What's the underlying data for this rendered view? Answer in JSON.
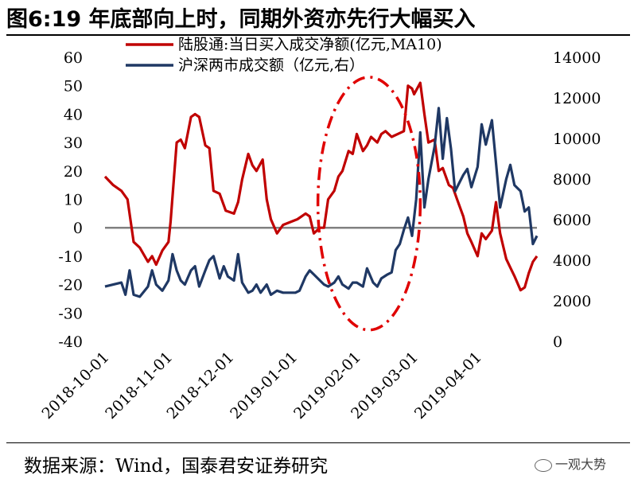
{
  "title": "图6:19 年底部向上时，同期外资亦先行大幅买入",
  "source": "数据来源：Wind，国泰君安证券研究",
  "watermark": "一观大势",
  "colors": {
    "series1": "#c00000",
    "series2": "#1f3864",
    "zero_line": "#808080",
    "annotation": "#e00000"
  },
  "chart_data": {
    "type": "line",
    "legend": [
      "陆股通:当日买入成交净额(亿元,MA10)",
      "沪深两市成交额（亿元,右）"
    ],
    "legend_placement": "top",
    "grid": false,
    "x_tick_labels": [
      "2018-10-01",
      "2018-11-01",
      "2018-12-01",
      "2019-01-01",
      "2019-02-01",
      "2019-03-01",
      "2019-04-01"
    ],
    "x_range": [
      "2018-10-01",
      "2019-04-30"
    ],
    "y_left": {
      "range": [
        -40,
        60
      ],
      "ticks": [
        -40,
        -30,
        -20,
        -10,
        0,
        10,
        20,
        30,
        40,
        50,
        60
      ]
    },
    "y_right": {
      "range": [
        0,
        14000
      ],
      "ticks": [
        0,
        2000,
        4000,
        6000,
        8000,
        10000,
        12000,
        14000
      ]
    },
    "series": [
      {
        "axis": "left",
        "points": [
          [
            "2018-10-01",
            18
          ],
          [
            "2018-10-05",
            15
          ],
          [
            "2018-10-09",
            13
          ],
          [
            "2018-10-12",
            10
          ],
          [
            "2018-10-15",
            -5
          ],
          [
            "2018-10-18",
            -7
          ],
          [
            "2018-10-22",
            -12
          ],
          [
            "2018-10-24",
            -10
          ],
          [
            "2018-10-26",
            -13
          ],
          [
            "2018-10-29",
            -8
          ],
          [
            "2018-11-01",
            -5
          ],
          [
            "2018-11-02",
            2
          ],
          [
            "2018-11-05",
            30
          ],
          [
            "2018-11-07",
            31
          ],
          [
            "2018-11-09",
            28
          ],
          [
            "2018-11-12",
            39
          ],
          [
            "2018-11-14",
            40
          ],
          [
            "2018-11-16",
            39
          ],
          [
            "2018-11-19",
            29
          ],
          [
            "2018-11-21",
            28
          ],
          [
            "2018-11-23",
            13
          ],
          [
            "2018-11-26",
            12
          ],
          [
            "2018-11-29",
            6
          ],
          [
            "2018-12-03",
            5
          ],
          [
            "2018-12-05",
            9
          ],
          [
            "2018-12-07",
            17
          ],
          [
            "2018-12-10",
            26
          ],
          [
            "2018-12-12",
            22
          ],
          [
            "2018-12-14",
            20
          ],
          [
            "2018-12-17",
            24
          ],
          [
            "2018-12-19",
            10
          ],
          [
            "2018-12-21",
            3
          ],
          [
            "2018-12-24",
            -2
          ],
          [
            "2018-12-27",
            1
          ],
          [
            "2019-01-03",
            3
          ],
          [
            "2019-01-07",
            5
          ],
          [
            "2019-01-09",
            4
          ],
          [
            "2019-01-11",
            -2
          ],
          [
            "2019-01-14",
            0
          ],
          [
            "2019-01-16",
            0
          ],
          [
            "2019-01-18",
            10
          ],
          [
            "2019-01-21",
            13
          ],
          [
            "2019-01-23",
            18
          ],
          [
            "2019-01-25",
            20
          ],
          [
            "2019-01-28",
            27
          ],
          [
            "2019-01-30",
            26
          ],
          [
            "2019-02-01",
            33
          ],
          [
            "2019-02-04",
            27
          ],
          [
            "2019-02-06",
            29
          ],
          [
            "2019-02-08",
            32
          ],
          [
            "2019-02-11",
            30
          ],
          [
            "2019-02-13",
            33
          ],
          [
            "2019-02-15",
            34
          ],
          [
            "2019-02-18",
            32
          ],
          [
            "2019-02-21",
            33
          ],
          [
            "2019-02-24",
            34
          ],
          [
            "2019-02-26",
            50
          ],
          [
            "2019-02-28",
            49
          ],
          [
            "2019-03-01",
            47
          ],
          [
            "2019-03-04",
            51
          ],
          [
            "2019-03-06",
            40
          ],
          [
            "2019-03-08",
            30
          ],
          [
            "2019-03-11",
            31
          ],
          [
            "2019-03-13",
            20
          ],
          [
            "2019-03-15",
            21
          ],
          [
            "2019-03-18",
            15
          ],
          [
            "2019-03-20",
            14
          ],
          [
            "2019-03-22",
            10
          ],
          [
            "2019-03-25",
            4
          ],
          [
            "2019-03-27",
            -2
          ],
          [
            "2019-03-29",
            -5
          ],
          [
            "2019-04-01",
            -10
          ],
          [
            "2019-04-03",
            -2
          ],
          [
            "2019-04-05",
            -4
          ],
          [
            "2019-04-08",
            -1
          ],
          [
            "2019-04-10",
            9
          ],
          [
            "2019-04-12",
            -2
          ],
          [
            "2019-04-15",
            -11
          ],
          [
            "2019-04-17",
            -14
          ],
          [
            "2019-04-19",
            -17
          ],
          [
            "2019-04-22",
            -22
          ],
          [
            "2019-04-24",
            -21
          ],
          [
            "2019-04-26",
            -16
          ],
          [
            "2019-04-28",
            -12
          ],
          [
            "2019-04-30",
            -10
          ]
        ]
      },
      {
        "axis": "right",
        "points": [
          [
            "2018-10-01",
            2700
          ],
          [
            "2018-10-05",
            2800
          ],
          [
            "2018-10-09",
            2900
          ],
          [
            "2018-10-11",
            2300
          ],
          [
            "2018-10-13",
            3500
          ],
          [
            "2018-10-15",
            2300
          ],
          [
            "2018-10-18",
            2200
          ],
          [
            "2018-10-22",
            2700
          ],
          [
            "2018-10-24",
            3500
          ],
          [
            "2018-10-26",
            2800
          ],
          [
            "2018-10-29",
            2500
          ],
          [
            "2018-11-01",
            3000
          ],
          [
            "2018-11-03",
            4300
          ],
          [
            "2018-11-05",
            3500
          ],
          [
            "2018-11-07",
            3000
          ],
          [
            "2018-11-09",
            2800
          ],
          [
            "2018-11-12",
            3500
          ],
          [
            "2018-11-14",
            3700
          ],
          [
            "2018-11-16",
            2700
          ],
          [
            "2018-11-19",
            3500
          ],
          [
            "2018-11-21",
            4000
          ],
          [
            "2018-11-23",
            4200
          ],
          [
            "2018-11-26",
            3100
          ],
          [
            "2018-11-28",
            3700
          ],
          [
            "2018-11-30",
            3200
          ],
          [
            "2018-12-03",
            3000
          ],
          [
            "2018-12-05",
            4300
          ],
          [
            "2018-12-07",
            2900
          ],
          [
            "2018-12-10",
            2400
          ],
          [
            "2018-12-12",
            2500
          ],
          [
            "2018-12-14",
            2800
          ],
          [
            "2018-12-16",
            2400
          ],
          [
            "2018-12-19",
            2800
          ],
          [
            "2018-12-21",
            2300
          ],
          [
            "2018-12-24",
            2500
          ],
          [
            "2018-12-27",
            2400
          ],
          [
            "2019-01-02",
            2400
          ],
          [
            "2019-01-04",
            2500
          ],
          [
            "2019-01-07",
            3200
          ],
          [
            "2019-01-09",
            3500
          ],
          [
            "2019-01-11",
            3300
          ],
          [
            "2019-01-14",
            3000
          ],
          [
            "2019-01-16",
            2800
          ],
          [
            "2019-01-18",
            2700
          ],
          [
            "2019-01-21",
            2900
          ],
          [
            "2019-01-23",
            3200
          ],
          [
            "2019-01-25",
            2800
          ],
          [
            "2019-01-28",
            2600
          ],
          [
            "2019-01-30",
            2900
          ],
          [
            "2019-02-01",
            2900
          ],
          [
            "2019-02-04",
            2700
          ],
          [
            "2019-02-06",
            3600
          ],
          [
            "2019-02-09",
            2900
          ],
          [
            "2019-02-11",
            2700
          ],
          [
            "2019-02-13",
            3100
          ],
          [
            "2019-02-16",
            3300
          ],
          [
            "2019-02-18",
            3400
          ],
          [
            "2019-02-20",
            4500
          ],
          [
            "2019-02-22",
            4800
          ],
          [
            "2019-02-24",
            5500
          ],
          [
            "2019-02-26",
            6100
          ],
          [
            "2019-02-28",
            5200
          ],
          [
            "2019-03-02",
            7000
          ],
          [
            "2019-03-04",
            10300
          ],
          [
            "2019-03-06",
            6600
          ],
          [
            "2019-03-08",
            8000
          ],
          [
            "2019-03-11",
            9600
          ],
          [
            "2019-03-13",
            11500
          ],
          [
            "2019-03-15",
            9000
          ],
          [
            "2019-03-17",
            11000
          ],
          [
            "2019-03-19",
            9500
          ],
          [
            "2019-03-21",
            7400
          ],
          [
            "2019-03-23",
            7800
          ],
          [
            "2019-03-25",
            8200
          ],
          [
            "2019-03-27",
            8500
          ],
          [
            "2019-03-29",
            7600
          ],
          [
            "2019-04-01",
            8600
          ],
          [
            "2019-04-03",
            10700
          ],
          [
            "2019-04-05",
            9700
          ],
          [
            "2019-04-08",
            10900
          ],
          [
            "2019-04-10",
            8800
          ],
          [
            "2019-04-12",
            6600
          ],
          [
            "2019-04-15",
            8000
          ],
          [
            "2019-04-17",
            8700
          ],
          [
            "2019-04-19",
            7700
          ],
          [
            "2019-04-22",
            7400
          ],
          [
            "2019-04-24",
            6400
          ],
          [
            "2019-04-26",
            6600
          ],
          [
            "2019-04-28",
            4800
          ],
          [
            "2019-04-30",
            5200
          ]
        ]
      }
    ],
    "annotation": {
      "shape": "dash-dot-ellipse",
      "x_from": "2019-01-13",
      "x_to": "2019-03-04",
      "y_from": -36,
      "y_to": 53,
      "axis": "left"
    }
  }
}
